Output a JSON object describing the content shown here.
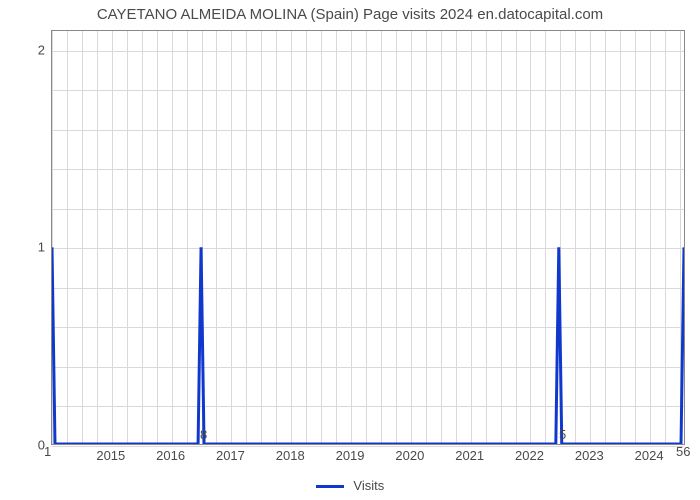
{
  "chart": {
    "type": "line",
    "title": "CAYETANO ALMEIDA MOLINA (Spain) Page visits 2024 en.datocapital.com",
    "title_fontsize": 15,
    "title_color": "#4a4a4a",
    "background_color": "#ffffff",
    "plot_border_color": "#888888",
    "grid_color": "#d9d9d9",
    "line_color": "#1038cc",
    "line_width": 3,
    "x": {
      "ticks": [
        2015,
        2016,
        2017,
        2018,
        2019,
        2020,
        2021,
        2022,
        2023,
        2024
      ],
      "min": 2014.0,
      "max": 2024.6,
      "minor_step": 0.25
    },
    "y": {
      "ticks": [
        0,
        1,
        2
      ],
      "min": 0,
      "max": 2.1,
      "minor_step": 0.2
    },
    "corners": {
      "bottom_left": "1",
      "bottom_right_inner": "5",
      "bottom_right_outer": "56",
      "top_left_inner": "8"
    },
    "series": {
      "name": "Visits",
      "points": [
        [
          2014.0,
          1.0
        ],
        [
          2014.05,
          0.0
        ],
        [
          2016.45,
          0.0
        ],
        [
          2016.5,
          1.0
        ],
        [
          2016.55,
          0.0
        ],
        [
          2022.45,
          0.0
        ],
        [
          2022.5,
          1.0
        ],
        [
          2022.55,
          0.0
        ],
        [
          2024.55,
          0.0
        ],
        [
          2024.6,
          1.0
        ]
      ]
    },
    "legend": {
      "label": "Visits",
      "swatch_color": "#1038cc"
    },
    "label_fontsize": 13,
    "label_color": "#4a4a4a"
  }
}
